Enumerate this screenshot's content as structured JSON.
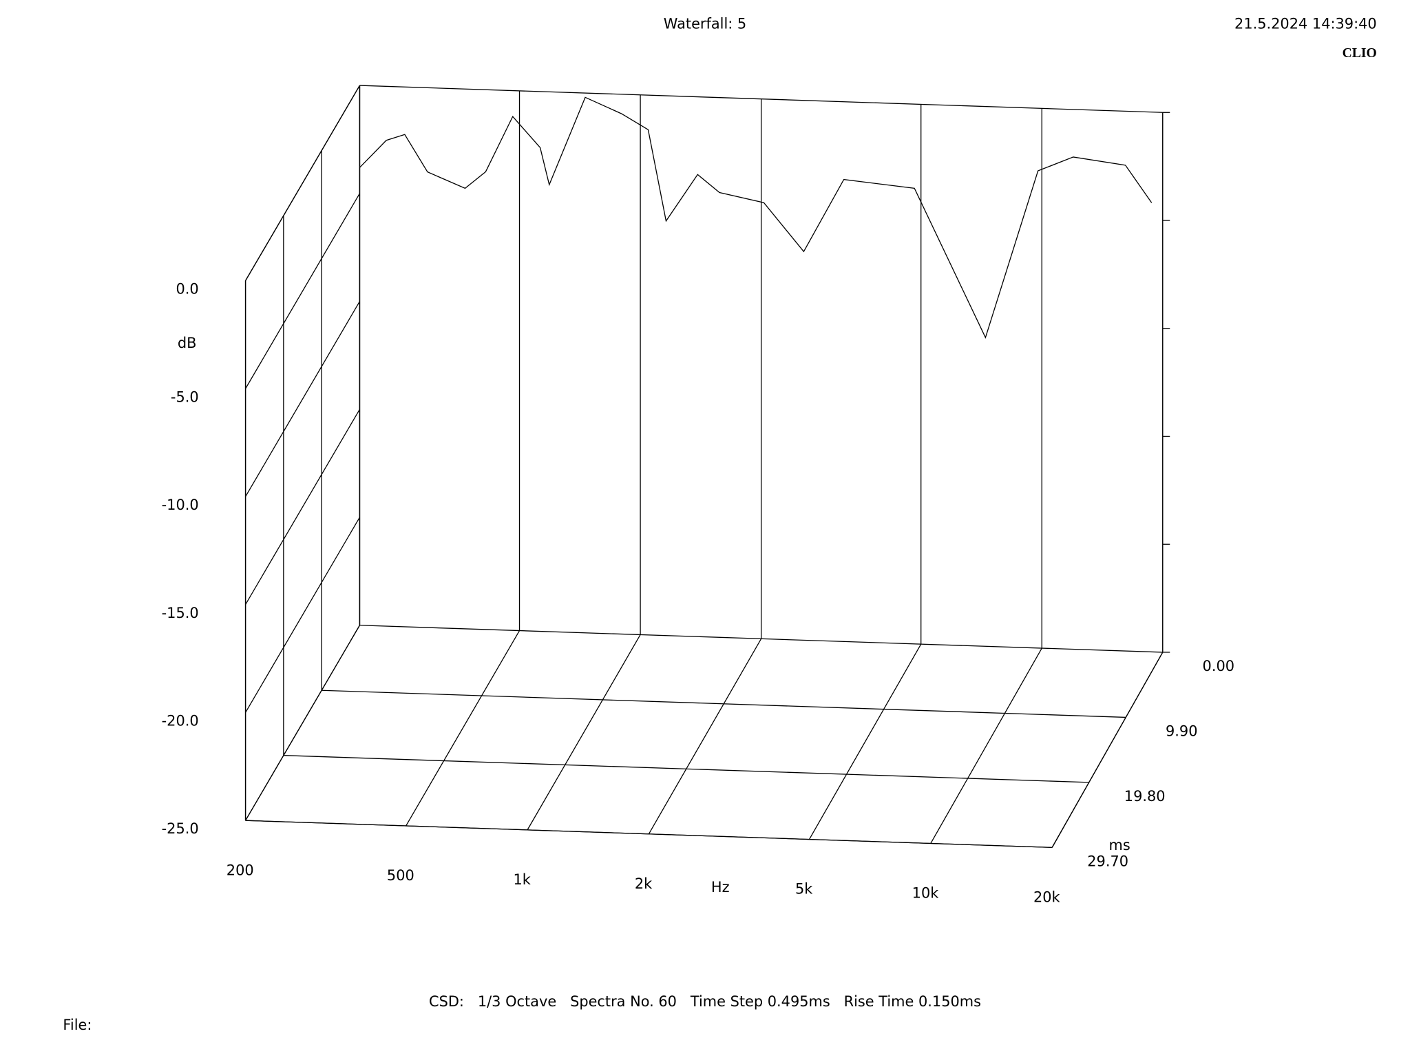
{
  "chart_data": {
    "type": "waterfall",
    "title": "Waterfall: 5",
    "timestamp": "21.5.2024 14:39:40",
    "brand": "CLIO",
    "footer": "CSD:   1/3 Octave   Spectra No. 60   Time Step 0.495ms   Rise Time 0.150ms",
    "file_label": "File:",
    "x_label": "Hz",
    "y_label": "dB",
    "z_label": "ms",
    "xscale": "log",
    "xlim": [
      200,
      20000
    ],
    "xticks": [
      200,
      500,
      {
        "value": 1000,
        "label": "1k"
      },
      {
        "value": 2000,
        "label": "2k"
      },
      {
        "value": 5000,
        "label": "5k"
      },
      {
        "value": 10000,
        "label": "10k"
      },
      {
        "value": 20000,
        "label": "20k"
      }
    ],
    "ylim": [
      -25,
      0
    ],
    "yticks": [
      {
        "value": 0,
        "label": "0.0"
      },
      {
        "value": -5,
        "label": "-5.0"
      },
      {
        "value": -10,
        "label": "-10.0"
      },
      {
        "value": -15,
        "label": "-15.0"
      },
      {
        "value": -20,
        "label": "-20.0"
      },
      {
        "value": -25,
        "label": "-25.0"
      }
    ],
    "zlim": [
      0,
      29.7
    ],
    "zticks": [
      {
        "value": 0,
        "label": "0.00"
      },
      {
        "value": 9.9,
        "label": "9.90"
      },
      {
        "value": 19.8,
        "label": "19.80"
      },
      {
        "value": 29.7,
        "label": "29.70"
      }
    ],
    "color": "#000000",
    "x": [
      200,
      233,
      259,
      295,
      366,
      412,
      481,
      563,
      593,
      729,
      898,
      1046,
      1159,
      1389,
      1574,
      2030,
      2552,
      3213,
      4815,
      7237,
      9780,
      11970,
      16150,
      18770
    ],
    "series": [
      {
        "time": 0,
        "values": [
          -3.8,
          -2.5,
          -2.2,
          -3.9,
          -4.6,
          -3.8,
          -1.2,
          -2.6,
          -4.3,
          -0.2,
          -0.9,
          -1.6,
          -5.8,
          -3.6,
          -4.4,
          -4.8,
          -7.0,
          -3.6,
          -3.9,
          -10.7,
          -2.9,
          -2.2,
          -2.5,
          -4.2
        ]
      }
    ]
  }
}
